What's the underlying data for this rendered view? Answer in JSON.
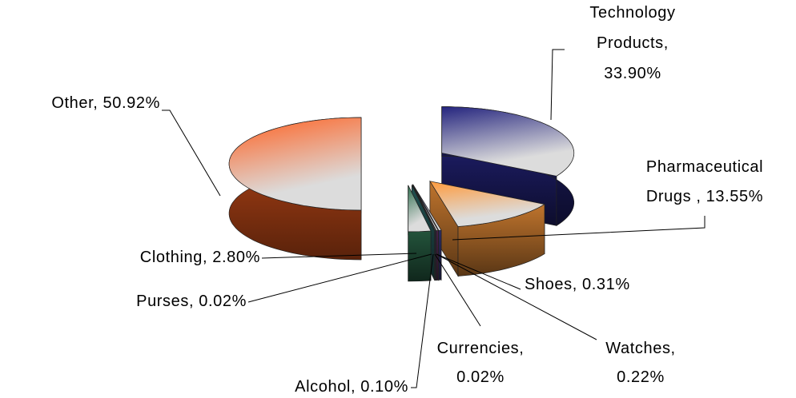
{
  "chart_data": {
    "type": "pie3d",
    "labels": [
      "Technology Products, 33.90%",
      "Pharmaceutical Drugs , 13.55%",
      "Shoes, 0.31%",
      "Watches, 0.22%",
      "Currencies, 0.02%",
      "Alcohol, 0.10%",
      "Purses, 0.02%",
      "Clothing, 2.80%",
      "Other, 50.92%"
    ],
    "values": [
      33.9,
      13.55,
      0.31,
      0.22,
      0.02,
      0.1,
      0.02,
      2.8,
      50.92
    ],
    "colors": [
      "#24247e",
      "#ff9a3c",
      "#3a3a8a",
      "#6a2a6a",
      "#1a3a3a",
      "#404080",
      "#2a6a6a",
      "#2f6f4f",
      "#ff6020"
    ]
  }
}
